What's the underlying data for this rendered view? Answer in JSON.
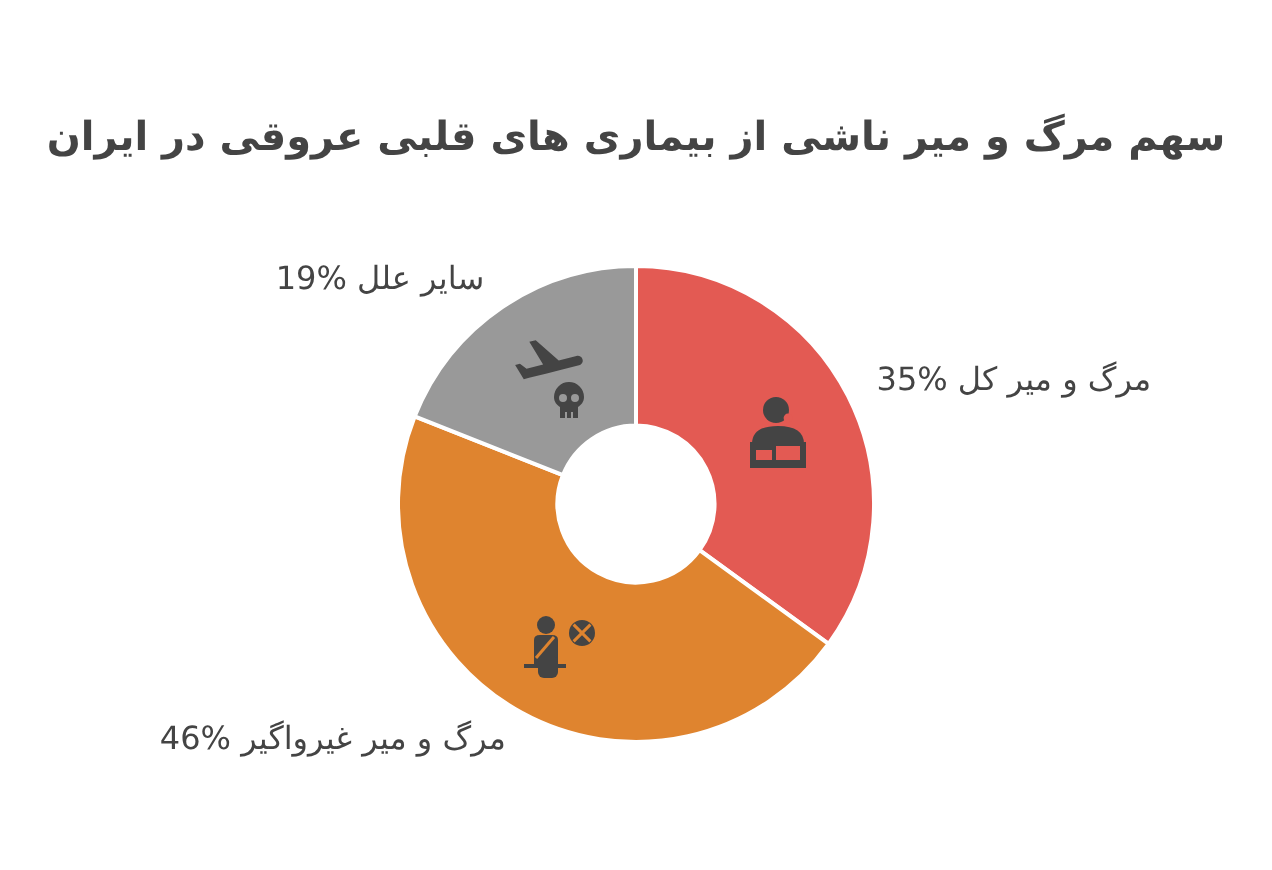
{
  "chart_data": {
    "type": "donut",
    "title": "سهم مرگ و میر ناشی از بیماری های قلبی عروقی در ایران",
    "categories": [
      "مرگ و میر کل",
      "مرگ و میر غیرواگیر",
      "سایر علل"
    ],
    "values": [
      35,
      46,
      19
    ],
    "colors": [
      "#e35a53",
      "#df842f",
      "#999999"
    ],
    "value_labels": [
      "35%",
      "46%",
      "19%"
    ]
  }
}
